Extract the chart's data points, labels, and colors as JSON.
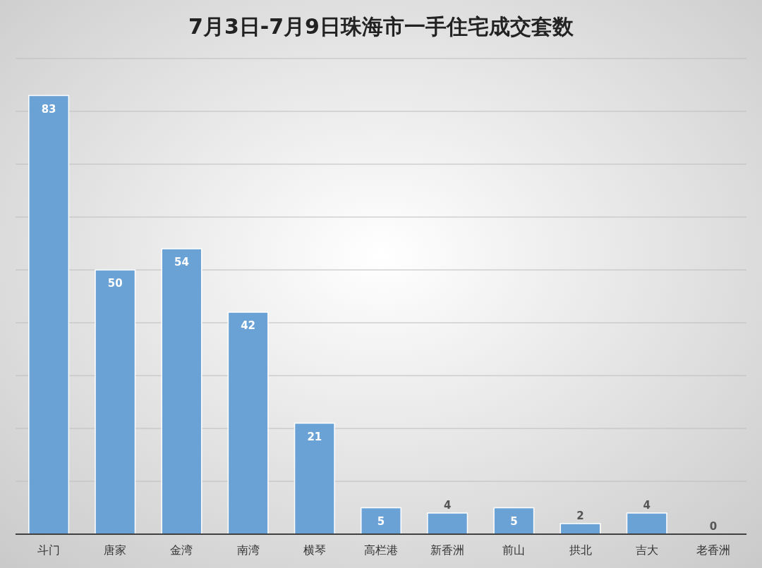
{
  "chart_data": {
    "type": "bar",
    "title": "7月3日-7月9日珠海市一手住宅成交套数",
    "categories": [
      "斗门",
      "唐家",
      "金湾",
      "南湾",
      "横琴",
      "高栏港",
      "新香洲",
      "前山",
      "拱北",
      "吉大",
      "老香洲"
    ],
    "values": [
      83,
      50,
      54,
      42,
      21,
      5,
      4,
      5,
      2,
      4,
      0
    ],
    "color": "#6aa2d6",
    "ylim": [
      0,
      90
    ],
    "yticks": [
      {
        "value": 0,
        "label": null
      },
      {
        "value": 10,
        "label": null
      },
      {
        "value": 20,
        "label": null
      },
      {
        "value": 30,
        "label": null
      },
      {
        "value": 40,
        "label": null
      },
      {
        "value": 50,
        "label": null
      },
      {
        "value": 60,
        "label": null
      },
      {
        "value": 70,
        "label": null
      },
      {
        "value": 80,
        "label": null
      },
      {
        "value": 90,
        "label": null
      }
    ],
    "grid": "y",
    "tick_labels": "x",
    "data_labels": true
  }
}
